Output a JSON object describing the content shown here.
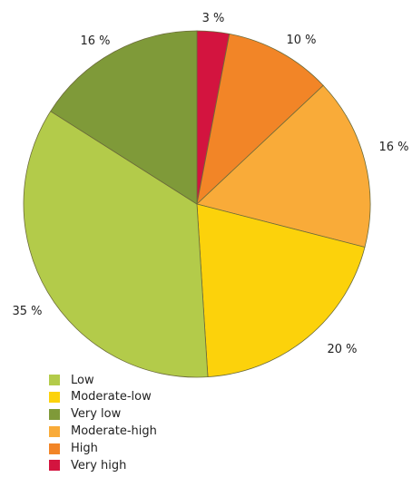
{
  "chart_data": {
    "type": "pie",
    "start_angle_deg": 0,
    "direction": "clockwise",
    "slices": [
      {
        "name": "Very high",
        "value": 3,
        "label": "3 %",
        "color": "#d3143f"
      },
      {
        "name": "High",
        "value": 10,
        "label": "10 %",
        "color": "#f28527"
      },
      {
        "name": "Moderate-high",
        "value": 16,
        "label": "16 %",
        "color": "#f9ab39"
      },
      {
        "name": "Moderate-low",
        "value": 20,
        "label": "20 %",
        "color": "#fcd20b"
      },
      {
        "name": "Low",
        "value": 35,
        "label": "35 %",
        "color": "#b3cb4a"
      },
      {
        "name": "Very low",
        "value": 16,
        "label": "16 %",
        "color": "#7f9a39"
      }
    ],
    "legend_position": "bottom-left",
    "legend": [
      {
        "label": "Low",
        "color": "#b3cb4a"
      },
      {
        "label": "Moderate-low",
        "color": "#fcd20b"
      },
      {
        "label": "Very low",
        "color": "#7f9a39"
      },
      {
        "label": "Moderate-high",
        "color": "#f9ab39"
      },
      {
        "label": "High",
        "color": "#f28527"
      },
      {
        "label": "Very high",
        "color": "#d3143f"
      }
    ]
  }
}
